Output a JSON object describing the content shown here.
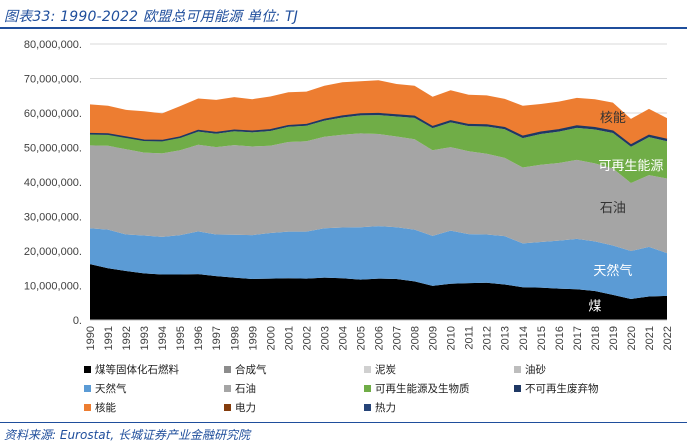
{
  "header": {
    "title": "图表33:  1990-2022 欧盟总可用能源 单位:  TJ"
  },
  "footer": {
    "source": "资料来源:  Eurostat, 长城证券产业金融研究院"
  },
  "chart_data": {
    "type": "area",
    "stacked": true,
    "title": "1990-2022 欧盟总可用能源",
    "ylabel": "TJ",
    "ylim": [
      0,
      80000000
    ],
    "yticks": [
      0,
      10000000,
      20000000,
      30000000,
      40000000,
      50000000,
      60000000,
      70000000,
      80000000
    ],
    "ytick_labels": [
      "0.",
      "10,000,000.",
      "20,000,000.",
      "30,000,000.",
      "40,000,000.",
      "50,000,000.",
      "60,000,000.",
      "70,000,000.",
      "80,000,000."
    ],
    "categories": [
      "1990",
      "1991",
      "1992",
      "1993",
      "1994",
      "1995",
      "1996",
      "1997",
      "1998",
      "1999",
      "2000",
      "2001",
      "2002",
      "2003",
      "2004",
      "2005",
      "2006",
      "2007",
      "2008",
      "2009",
      "2010",
      "2011",
      "2012",
      "2013",
      "2014",
      "2015",
      "2016",
      "2017",
      "2018",
      "2019",
      "2020",
      "2021",
      "2022"
    ],
    "series": [
      {
        "name": "煤等固体化石燃料",
        "color": "#000000",
        "values": [
          16200000,
          15000000,
          14200000,
          13500000,
          13200000,
          13200000,
          13300000,
          12700000,
          12300000,
          11900000,
          12000000,
          12100000,
          12000000,
          12300000,
          12100000,
          11700000,
          12000000,
          11900000,
          11200000,
          9900000,
          10500000,
          10700000,
          10800000,
          10300000,
          9500000,
          9400000,
          9100000,
          8900000,
          8400000,
          7300000,
          6100000,
          6800000,
          7000000
        ]
      },
      {
        "name": "合成气",
        "color": "#8c8c8c",
        "values": [
          0,
          0,
          0,
          0,
          0,
          0,
          0,
          0,
          0,
          0,
          0,
          0,
          0,
          0,
          0,
          0,
          0,
          0,
          0,
          0,
          0,
          0,
          0,
          0,
          0,
          0,
          0,
          0,
          0,
          0,
          0,
          0,
          0
        ]
      },
      {
        "name": "泥炭",
        "color": "#d0d0d0",
        "values": [
          0,
          0,
          0,
          0,
          0,
          0,
          0,
          0,
          0,
          0,
          0,
          0,
          0,
          0,
          0,
          0,
          0,
          0,
          0,
          0,
          0,
          0,
          0,
          0,
          0,
          0,
          0,
          0,
          0,
          0,
          0,
          0,
          0
        ]
      },
      {
        "name": "油砂",
        "color": "#bdbdbd",
        "values": [
          0,
          0,
          0,
          0,
          0,
          0,
          0,
          0,
          0,
          0,
          0,
          0,
          0,
          0,
          0,
          0,
          0,
          0,
          0,
          0,
          0,
          0,
          0,
          0,
          0,
          0,
          0,
          0,
          0,
          0,
          0,
          0,
          0
        ]
      },
      {
        "name": "天然气",
        "color": "#5b9bd5",
        "values": [
          10400000,
          11200000,
          10600000,
          11000000,
          10900000,
          11400000,
          12400000,
          12100000,
          12400000,
          12700000,
          13200000,
          13500000,
          13600000,
          14300000,
          14700000,
          15200000,
          15200000,
          15000000,
          15000000,
          14500000,
          15400000,
          14200000,
          14000000,
          14000000,
          12700000,
          13200000,
          13900000,
          14600000,
          14400000,
          14300000,
          13900000,
          14400000,
          12400000
        ]
      },
      {
        "name": "石油",
        "color": "#a5a5a5",
        "values": [
          24000000,
          24300000,
          24700000,
          24000000,
          24200000,
          24600000,
          25100000,
          25300000,
          26000000,
          25700000,
          25300000,
          26000000,
          26200000,
          26500000,
          26900000,
          27200000,
          26700000,
          26300000,
          26200000,
          24800000,
          24200000,
          24000000,
          23400000,
          22700000,
          22000000,
          22400000,
          22500000,
          22900000,
          22600000,
          22300000,
          19700000,
          20800000,
          21600000
        ]
      },
      {
        "name": "可再生能源及生物质",
        "color": "#70ad47",
        "values": [
          3200000,
          3200000,
          3300000,
          3400000,
          3500000,
          3600000,
          3800000,
          3900000,
          4000000,
          4100000,
          4300000,
          4400000,
          4500000,
          4700000,
          5000000,
          5200000,
          5500000,
          5800000,
          6200000,
          6400000,
          7200000,
          7300000,
          7900000,
          8300000,
          8500000,
          8900000,
          9100000,
          9300000,
          9800000,
          10300000,
          10500000,
          11000000,
          10800000
        ]
      },
      {
        "name": "不可再生废弃物",
        "color": "#1f3864",
        "values": [
          200000,
          200000,
          200000,
          200000,
          200000,
          200000,
          300000,
          300000,
          300000,
          300000,
          300000,
          300000,
          300000,
          300000,
          400000,
          400000,
          400000,
          400000,
          400000,
          400000,
          400000,
          400000,
          400000,
          400000,
          500000,
          500000,
          500000,
          500000,
          500000,
          500000,
          500000,
          500000,
          500000
        ]
      },
      {
        "name": "核能",
        "color": "#ed7d31",
        "values": [
          8500000,
          8200000,
          7900000,
          8400000,
          7900000,
          9000000,
          9300000,
          9500000,
          9600000,
          9300000,
          9700000,
          9700000,
          9600000,
          9800000,
          9800000,
          9500000,
          9700000,
          9000000,
          8900000,
          8700000,
          8900000,
          8700000,
          8600000,
          8400000,
          8900000,
          8200000,
          8200000,
          8200000,
          8300000,
          8300000,
          7600000,
          7700000,
          6200000
        ]
      },
      {
        "name": "电力",
        "color": "#843c0c",
        "values": [
          0,
          0,
          0,
          0,
          0,
          0,
          0,
          0,
          0,
          0,
          0,
          0,
          0,
          0,
          0,
          0,
          0,
          0,
          0,
          0,
          0,
          0,
          0,
          0,
          0,
          0,
          0,
          0,
          0,
          0,
          0,
          0,
          0
        ]
      },
      {
        "name": "热力",
        "color": "#264478",
        "values": [
          0,
          0,
          0,
          0,
          0,
          0,
          0,
          0,
          0,
          0,
          0,
          0,
          0,
          0,
          0,
          0,
          0,
          0,
          0,
          0,
          0,
          0,
          0,
          0,
          0,
          0,
          0,
          0,
          0,
          0,
          0,
          0,
          0
        ]
      }
    ],
    "annotations": [
      {
        "text": "核能",
        "series": "核能",
        "color": "#333333"
      },
      {
        "text": "可再生能源",
        "series": "可再生能源及生物质",
        "color": "#ffffff"
      },
      {
        "text": "石油",
        "series": "石油",
        "color": "#333333"
      },
      {
        "text": "天然气",
        "series": "天然气",
        "color": "#ffffff"
      },
      {
        "text": "煤",
        "series": "煤等固体化石燃料",
        "color": "#ffffff"
      }
    ],
    "legend_position": "bottom"
  }
}
